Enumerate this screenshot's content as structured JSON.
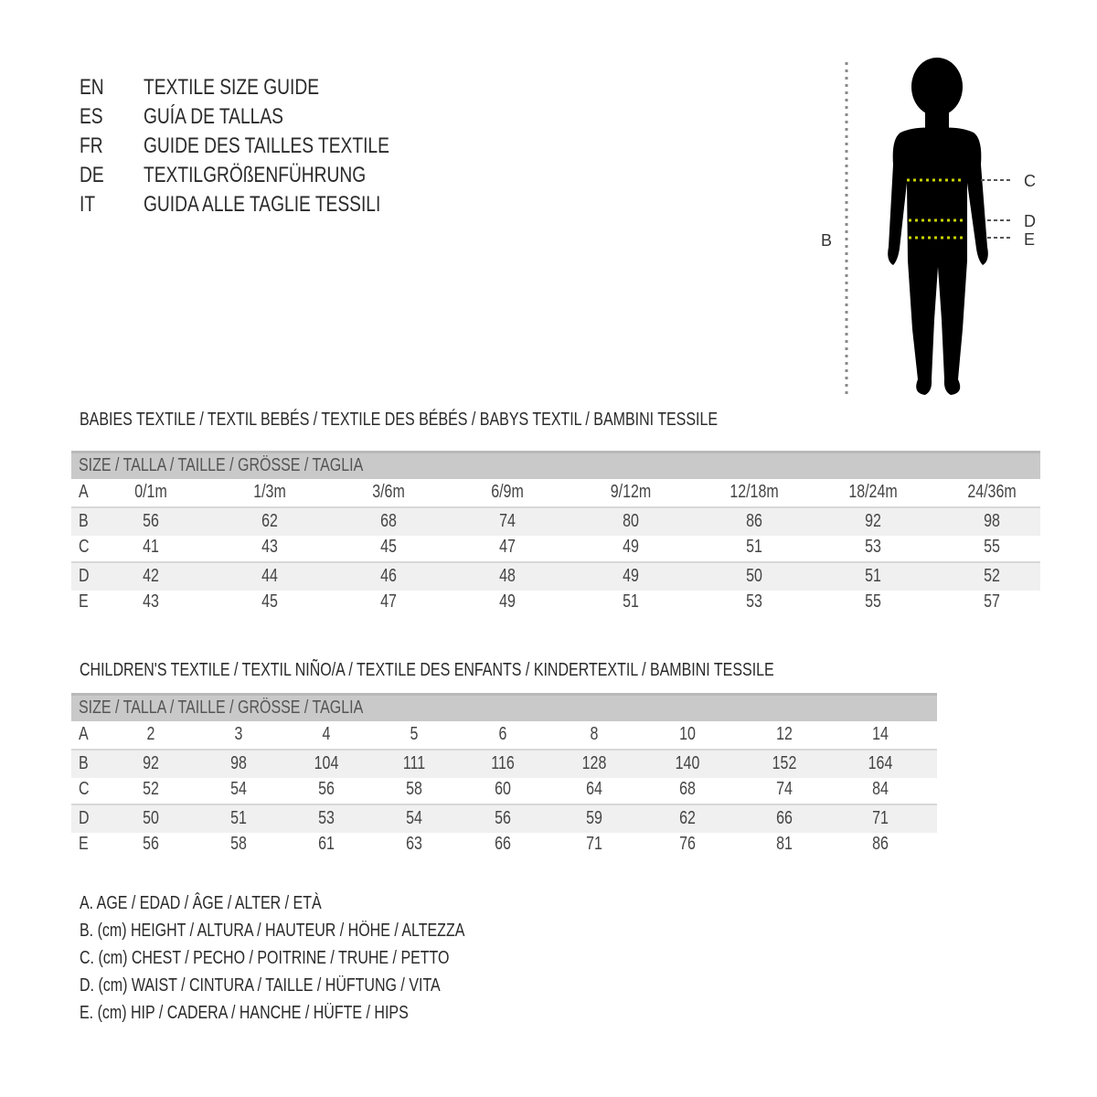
{
  "titles": [
    {
      "lang": "EN",
      "text": "TEXTILE SIZE GUIDE"
    },
    {
      "lang": "ES",
      "text": "GUÍA DE TALLAS"
    },
    {
      "lang": "FR",
      "text": "GUIDE DES TAILLES TEXTILE"
    },
    {
      "lang": "DE",
      "text": "TEXTILGRÖßENFÜHRUNG"
    },
    {
      "lang": "IT",
      "text": "GUIDA ALLE TAGLIE TESSILI"
    }
  ],
  "figure": {
    "labels": {
      "b": "B",
      "c": "C",
      "d": "D",
      "e": "E"
    },
    "marker_color": "#c8d400"
  },
  "babies": {
    "section_title": "BABIES TEXTILE / TEXTIL BEBÉS / TEXTILE DES BÉBÉS / BABYS TEXTIL  / BAMBINI TESSILE",
    "header": "SIZE / TALLA / TAILLE / GRÖSSE / TAGLIA",
    "rows": [
      {
        "label": "A",
        "values": [
          "0/1m",
          "1/3m",
          "3/6m",
          "6/9m",
          "9/12m",
          "12/18m",
          "18/24m",
          "24/36m"
        ]
      },
      {
        "label": "B",
        "values": [
          "56",
          "62",
          "68",
          "74",
          "80",
          "86",
          "92",
          "98"
        ]
      },
      {
        "label": "C",
        "values": [
          "41",
          "43",
          "45",
          "47",
          "49",
          "51",
          "53",
          "55"
        ]
      },
      {
        "label": "D",
        "values": [
          "42",
          "44",
          "46",
          "48",
          "49",
          "50",
          "51",
          "52"
        ]
      },
      {
        "label": "E",
        "values": [
          "43",
          "45",
          "47",
          "49",
          "51",
          "53",
          "55",
          "57"
        ]
      }
    ]
  },
  "children": {
    "section_title": "CHILDREN'S TEXTILE / TEXTIL NIÑO/A / TEXTILE DES ENFANTS / KINDERTEXTIL / BAMBINI TESSILE",
    "header": "SIZE / TALLA / TAILLE / GRÖSSE / TAGLIA",
    "rows": [
      {
        "label": "A",
        "values": [
          "2",
          "3",
          "4",
          "5",
          "6",
          "8",
          "10",
          "12",
          "14"
        ]
      },
      {
        "label": "B",
        "values": [
          "92",
          "98",
          "104",
          "111",
          "116",
          "128",
          "140",
          "152",
          "164"
        ]
      },
      {
        "label": "C",
        "values": [
          "52",
          "54",
          "56",
          "58",
          "60",
          "64",
          "68",
          "74",
          "84"
        ]
      },
      {
        "label": "D",
        "values": [
          "50",
          "51",
          "53",
          "54",
          "56",
          "59",
          "62",
          "66",
          "71"
        ]
      },
      {
        "label": "E",
        "values": [
          "56",
          "58",
          "61",
          "63",
          "66",
          "71",
          "76",
          "81",
          "86"
        ]
      }
    ]
  },
  "legend": [
    "A. AGE / EDAD / ÂGE / ALTER / ETÀ",
    "B. (cm) HEIGHT / ALTURA / HAUTEUR / HÖHE / ALTEZZA",
    "C. (cm) CHEST / PECHO / POITRINE / TRUHE / PETTO",
    "D. (cm) WAIST / CINTURA / TAILLE / HÜFTUNG / VITA",
    "E. (cm) HIP / CADERA / HANCHE / HÜFTE / HIPS"
  ]
}
